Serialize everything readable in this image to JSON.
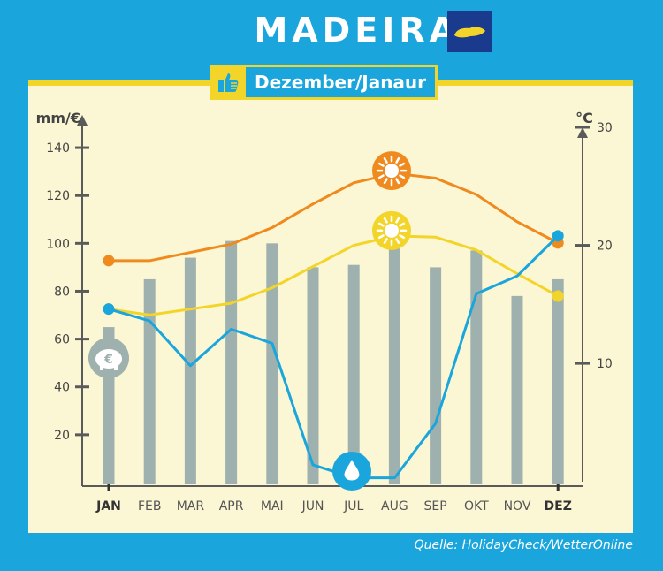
{
  "title": "MADEIRA",
  "badge": {
    "label": "Dezember/Janaur",
    "icon": "thumbs-up-icon"
  },
  "source": "Quelle: HolidayCheck/WetterOnline",
  "colors": {
    "background": "#1aa6dc",
    "panel": "#fbf6d3",
    "accent_yellow": "#f3d52a",
    "bars": "#9fb1ae",
    "orange": "#ef8a1f",
    "yellow": "#f3d52a",
    "blue": "#1aa6dc",
    "axis": "#5a5a5a"
  },
  "chart_data": {
    "type": "bar",
    "categories": [
      "JAN",
      "FEB",
      "MAR",
      "APR",
      "MAI",
      "JUN",
      "JUL",
      "AUG",
      "SEP",
      "OKT",
      "NOV",
      "DEZ"
    ],
    "highlighted_categories": [
      "JAN",
      "DEZ"
    ],
    "left_axis": {
      "label": "mm/€",
      "ticks": [
        20,
        40,
        60,
        80,
        100,
        120,
        140
      ],
      "ylim": [
        0,
        150
      ]
    },
    "right_axis": {
      "label": "°C",
      "ticks": [
        10,
        20,
        30
      ],
      "ylim": [
        -0.1,
        30.3
      ]
    },
    "series": [
      {
        "type": "bar",
        "axis": "left",
        "color": "#9fb1ae",
        "icon": "piggy-bank-euro-icon",
        "values": [
          65,
          85,
          94,
          101,
          100,
          90,
          91,
          98,
          90,
          97,
          78,
          85
        ]
      },
      {
        "type": "line",
        "axis": "right",
        "color": "#ef8a1f",
        "icon": "sun-icon",
        "values": [
          18.7,
          18.7,
          19.4,
          20.1,
          21.5,
          23.5,
          25.3,
          26.1,
          25.7,
          24.3,
          22.0,
          20.2
        ]
      },
      {
        "type": "line",
        "axis": "right",
        "color": "#f3d52a",
        "icon": "sun-icon",
        "values": [
          14.6,
          14.1,
          14.6,
          15.1,
          16.4,
          18.2,
          20.0,
          20.8,
          20.7,
          19.6,
          17.6,
          15.7
        ]
      },
      {
        "type": "line",
        "axis": "right",
        "color": "#1aa6dc",
        "icon": "water-drop-icon",
        "values": [
          14.6,
          13.6,
          9.8,
          12.9,
          11.7,
          1.4,
          0.3,
          0.3,
          4.9,
          15.9,
          17.4,
          20.8
        ]
      }
    ]
  }
}
